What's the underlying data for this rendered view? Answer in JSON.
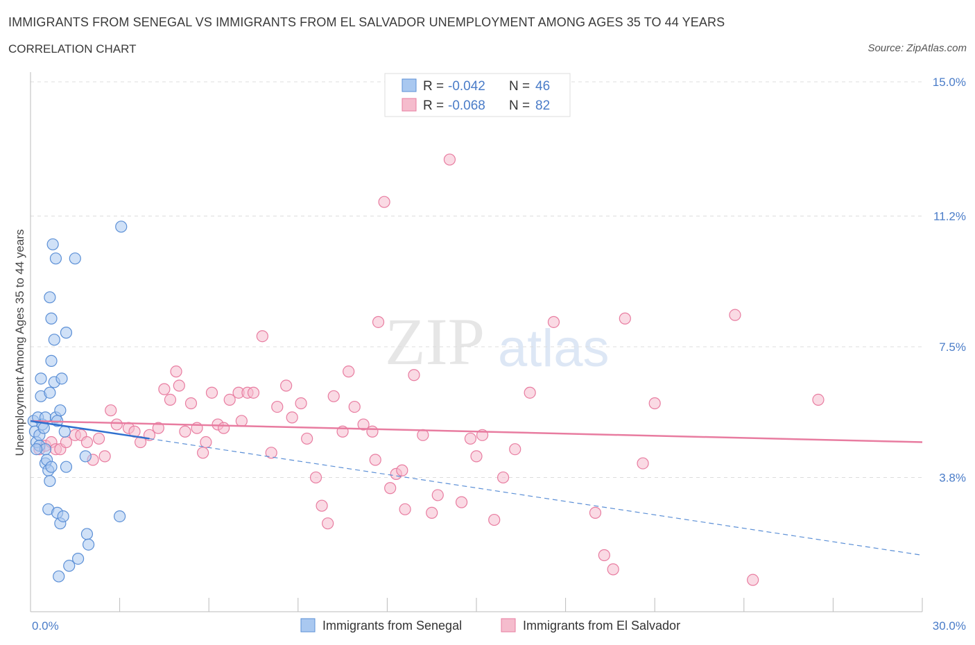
{
  "header": {
    "title": "IMMIGRANTS FROM SENEGAL VS IMMIGRANTS FROM EL SALVADOR UNEMPLOYMENT AMONG AGES 35 TO 44 YEARS",
    "subtitle": "CORRELATION CHART",
    "source": "Source: ZipAtlas.com"
  },
  "watermark": "ZIPatlas",
  "legend": {
    "senegal": {
      "r_label": "R =",
      "r_value": "-0.042",
      "n_label": "N =",
      "n_value": "46"
    },
    "elsalvador": {
      "r_label": "R =",
      "r_value": "-0.068",
      "n_label": "N =",
      "n_value": "82"
    }
  },
  "chart_data": {
    "type": "scatter",
    "title": "IMMIGRANTS FROM SENEGAL VS IMMIGRANTS FROM EL SALVADOR UNEMPLOYMENT AMONG AGES 35 TO 44 YEARS",
    "xlabel": "",
    "ylabel": "Unemployment Among Ages 35 to 44 years",
    "xlim": [
      0,
      30
    ],
    "ylim": [
      0,
      15
    ],
    "x_tick_labels": [
      "0.0%",
      "30.0%"
    ],
    "y_ticks": [
      3.8,
      7.5,
      11.2,
      15.0
    ],
    "y_tick_labels": [
      "3.8%",
      "7.5%",
      "11.2%",
      "15.0%"
    ],
    "colors": {
      "senegal": "#5b8fd6",
      "elsalvador": "#e87ca0",
      "senegal_fill": "#a9c8f0",
      "elsalvador_fill": "#f5bccd"
    },
    "series": [
      {
        "name": "Immigrants from Senegal",
        "points": [
          [
            0.1,
            5.4
          ],
          [
            0.15,
            5.1
          ],
          [
            0.2,
            4.8
          ],
          [
            0.25,
            5.5
          ],
          [
            0.3,
            5.0
          ],
          [
            0.3,
            4.7
          ],
          [
            0.35,
            6.6
          ],
          [
            0.35,
            6.1
          ],
          [
            0.4,
            5.3
          ],
          [
            0.45,
            5.2
          ],
          [
            0.5,
            5.5
          ],
          [
            0.5,
            4.2
          ],
          [
            0.55,
            4.3
          ],
          [
            0.6,
            4.0
          ],
          [
            0.6,
            2.9
          ],
          [
            0.65,
            3.7
          ],
          [
            0.65,
            6.2
          ],
          [
            0.65,
            8.9
          ],
          [
            0.7,
            8.3
          ],
          [
            0.7,
            7.1
          ],
          [
            0.75,
            10.4
          ],
          [
            0.8,
            6.5
          ],
          [
            0.8,
            7.7
          ],
          [
            0.85,
            5.5
          ],
          [
            0.85,
            10.0
          ],
          [
            0.9,
            5.4
          ],
          [
            0.9,
            2.8
          ],
          [
            0.95,
            1.0
          ],
          [
            1.0,
            2.5
          ],
          [
            1.0,
            5.7
          ],
          [
            1.05,
            6.6
          ],
          [
            1.1,
            2.7
          ],
          [
            1.15,
            5.1
          ],
          [
            1.2,
            7.9
          ],
          [
            1.2,
            4.1
          ],
          [
            1.3,
            1.3
          ],
          [
            1.5,
            10.0
          ],
          [
            1.6,
            1.5
          ],
          [
            1.85,
            4.4
          ],
          [
            1.9,
            2.2
          ],
          [
            1.95,
            1.9
          ],
          [
            3.0,
            2.7
          ],
          [
            3.05,
            10.9
          ],
          [
            0.5,
            4.6
          ],
          [
            0.7,
            4.1
          ],
          [
            0.2,
            4.6
          ]
        ]
      },
      {
        "name": "Immigrants from El Salvador",
        "points": [
          [
            0.3,
            4.6
          ],
          [
            0.5,
            4.7
          ],
          [
            0.7,
            4.8
          ],
          [
            0.85,
            4.6
          ],
          [
            1.0,
            4.6
          ],
          [
            1.2,
            4.8
          ],
          [
            1.5,
            5.0
          ],
          [
            1.7,
            5.0
          ],
          [
            1.9,
            4.8
          ],
          [
            2.1,
            4.3
          ],
          [
            2.3,
            4.9
          ],
          [
            2.5,
            4.4
          ],
          [
            2.7,
            5.7
          ],
          [
            2.9,
            5.3
          ],
          [
            3.3,
            5.2
          ],
          [
            3.5,
            5.1
          ],
          [
            3.7,
            4.8
          ],
          [
            4.0,
            5.0
          ],
          [
            4.3,
            5.2
          ],
          [
            4.5,
            6.3
          ],
          [
            4.7,
            6.0
          ],
          [
            4.9,
            6.8
          ],
          [
            5.0,
            6.4
          ],
          [
            5.2,
            5.1
          ],
          [
            5.4,
            5.9
          ],
          [
            5.6,
            5.2
          ],
          [
            5.8,
            4.5
          ],
          [
            5.9,
            4.8
          ],
          [
            6.1,
            6.2
          ],
          [
            6.3,
            5.3
          ],
          [
            6.5,
            5.2
          ],
          [
            6.7,
            6.0
          ],
          [
            7.0,
            6.2
          ],
          [
            7.1,
            5.4
          ],
          [
            7.3,
            6.2
          ],
          [
            7.5,
            6.2
          ],
          [
            7.8,
            7.8
          ],
          [
            8.1,
            4.5
          ],
          [
            8.3,
            5.8
          ],
          [
            8.6,
            6.4
          ],
          [
            8.8,
            5.5
          ],
          [
            9.1,
            5.9
          ],
          [
            9.3,
            4.9
          ],
          [
            9.6,
            3.8
          ],
          [
            9.8,
            3.0
          ],
          [
            10.0,
            2.5
          ],
          [
            10.2,
            6.1
          ],
          [
            10.5,
            5.1
          ],
          [
            10.7,
            6.8
          ],
          [
            10.9,
            5.8
          ],
          [
            11.2,
            5.3
          ],
          [
            11.5,
            5.1
          ],
          [
            11.6,
            4.3
          ],
          [
            11.7,
            8.2
          ],
          [
            11.9,
            11.6
          ],
          [
            12.1,
            3.5
          ],
          [
            12.3,
            3.9
          ],
          [
            12.5,
            4.0
          ],
          [
            12.6,
            2.9
          ],
          [
            12.9,
            6.7
          ],
          [
            13.2,
            5.0
          ],
          [
            13.5,
            2.8
          ],
          [
            13.7,
            3.3
          ],
          [
            14.1,
            12.8
          ],
          [
            14.5,
            3.1
          ],
          [
            14.8,
            4.9
          ],
          [
            15.0,
            4.4
          ],
          [
            15.2,
            5.0
          ],
          [
            15.6,
            2.6
          ],
          [
            15.9,
            3.8
          ],
          [
            16.3,
            4.6
          ],
          [
            16.8,
            6.2
          ],
          [
            17.6,
            8.2
          ],
          [
            19.0,
            2.8
          ],
          [
            19.3,
            1.6
          ],
          [
            19.6,
            1.2
          ],
          [
            20.0,
            8.3
          ],
          [
            20.6,
            4.2
          ],
          [
            21.0,
            5.9
          ],
          [
            23.7,
            8.4
          ],
          [
            24.3,
            0.9
          ],
          [
            26.5,
            6.0
          ]
        ]
      }
    ],
    "trendlines": [
      {
        "name": "Immigrants from Senegal",
        "solid": [
          [
            0.0,
            5.4
          ],
          [
            4.0,
            4.9
          ]
        ],
        "dashed": [
          [
            4.0,
            4.9
          ],
          [
            30.0,
            1.6
          ]
        ]
      },
      {
        "name": "Immigrants from El Salvador",
        "solid": [
          [
            0.0,
            5.4
          ],
          [
            30.0,
            4.8
          ]
        ]
      }
    ]
  },
  "bottom_legend": {
    "senegal": "Immigrants from Senegal",
    "elsalvador": "Immigrants from El Salvador"
  }
}
